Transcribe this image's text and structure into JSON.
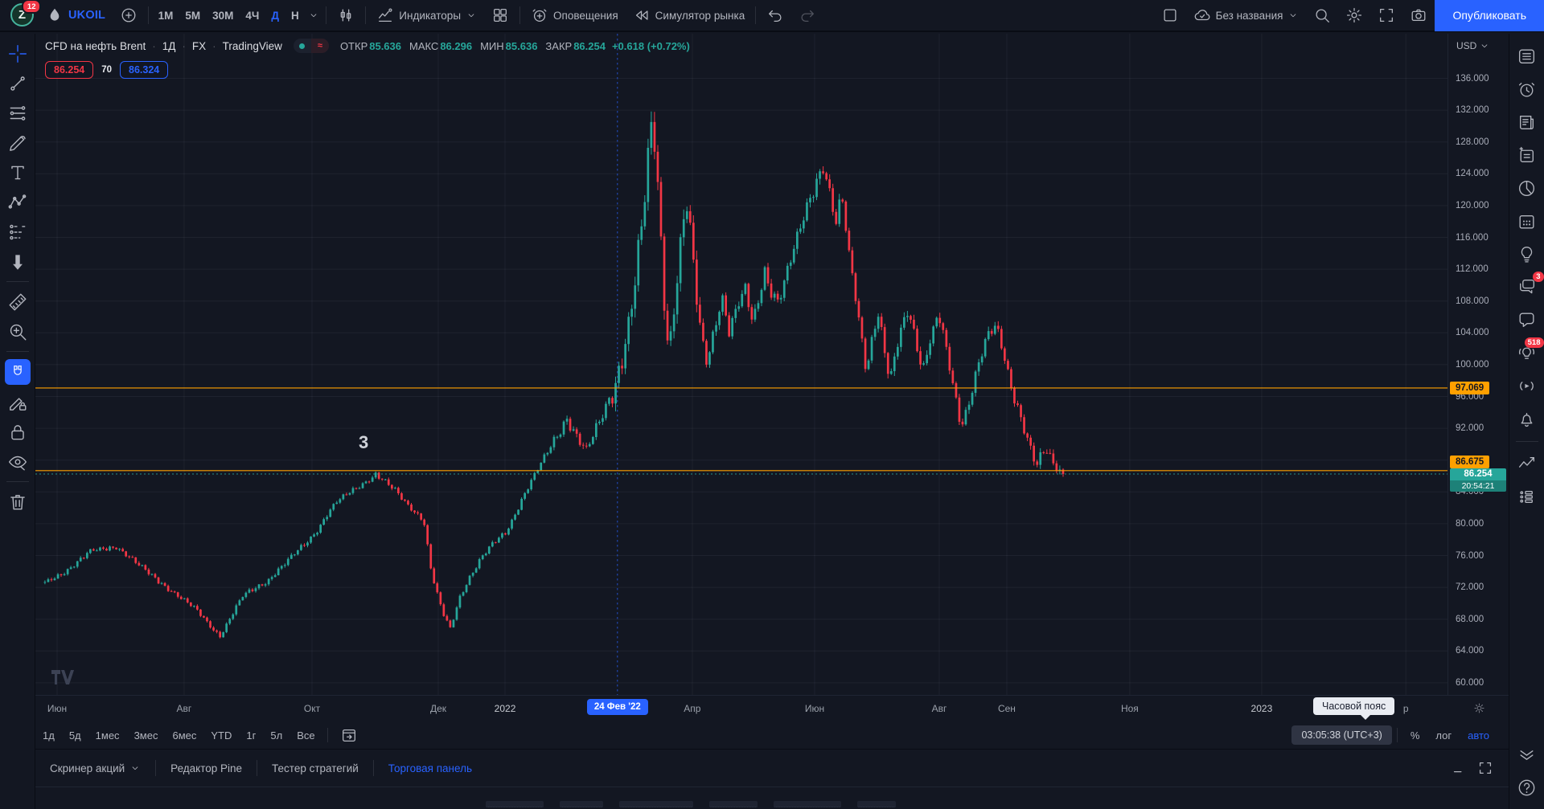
{
  "colors": {
    "accent": "#2962ff",
    "up": "#26a69a",
    "down": "#f23645",
    "orange": "#ffa000",
    "background": "#131722",
    "text": "#d1d4dc",
    "text_dim": "#787b86",
    "grid": "rgba(240,243,250,0.055)"
  },
  "topbar": {
    "avatar_letter": "Z",
    "avatar_badge": "12",
    "symbol": "UKOIL",
    "timeframes": [
      {
        "label": "1M"
      },
      {
        "label": "5M"
      },
      {
        "label": "30M"
      },
      {
        "label": "4Ч"
      },
      {
        "label": "Д",
        "active": true
      },
      {
        "label": "Н"
      }
    ],
    "indicators_label": "Индикаторы",
    "alerts_label": "Оповещения",
    "simulator_label": "Симулятор рынка",
    "layout_name": "Без названия",
    "publish_label": "Опубликовать"
  },
  "legend": {
    "title": "CFD на нефть Brent",
    "timeframe": "1Д",
    "market": "FX",
    "provider": "TradingView",
    "ohlc": [
      {
        "k": "ОТКР",
        "v": "85.636"
      },
      {
        "k": "МАКС",
        "v": "86.296"
      },
      {
        "k": "МИН",
        "v": "85.636"
      },
      {
        "k": "ЗАКР",
        "v": "86.254"
      }
    ],
    "change": "+0.618 (+0.72%)",
    "sell_price": "86.254",
    "spread": "70",
    "buy_price": "86.324"
  },
  "annotation": {
    "text": "3"
  },
  "left_toolbar": {
    "items": [
      {
        "icon": "crosshair",
        "name": "crosshair-tool",
        "accent": true
      },
      {
        "icon": "trend-line",
        "name": "trend-line-tool"
      },
      {
        "icon": "fib-lines",
        "name": "fib-retracement-tool"
      },
      {
        "icon": "brush",
        "name": "brush-tool"
      },
      {
        "icon": "text-tool",
        "name": "text-tool"
      },
      {
        "icon": "xabcd",
        "name": "pattern-tool"
      },
      {
        "icon": "forecast",
        "name": "prediction-measure-tool"
      },
      {
        "icon": "arrow-down-bold",
        "name": "arrow-marker-tool"
      },
      {
        "divider": true
      },
      {
        "icon": "ruler",
        "name": "measure-tool"
      },
      {
        "icon": "zoom-in",
        "name": "zoom-in-tool"
      },
      {
        "divider": true
      },
      {
        "icon": "magnet",
        "name": "magnet-mode",
        "active": true
      },
      {
        "icon": "pencil-lock",
        "name": "stay-in-drawing-mode"
      },
      {
        "icon": "lock",
        "name": "lock-all-drawings"
      },
      {
        "icon": "eye-off",
        "name": "hide-all-drawings"
      },
      {
        "divider": true
      },
      {
        "icon": "trash",
        "name": "remove-all-drawings"
      }
    ]
  },
  "right_sidebar": {
    "items": [
      {
        "icon": "watchlist",
        "name": "watchlist-panel"
      },
      {
        "icon": "alarm-clock",
        "name": "alerts-panel"
      },
      {
        "icon": "news",
        "name": "news-panel"
      },
      {
        "icon": "notes-sparkle",
        "name": "notes-panel"
      },
      {
        "icon": "pie",
        "name": "hotlists-panel"
      },
      {
        "icon": "calendar-grid",
        "name": "calendar-panel"
      },
      {
        "icon": "ideas-bulb",
        "name": "ideas-panel"
      },
      {
        "icon": "chats",
        "name": "private-chats-panel",
        "badge": "3"
      },
      {
        "icon": "chat-bubble",
        "name": "public-chat-panel"
      },
      {
        "icon": "minds-bulb",
        "name": "minds-panel",
        "badge": "518"
      },
      {
        "icon": "streams",
        "name": "streams-panel"
      },
      {
        "icon": "notifications-bell",
        "name": "notifications-panel"
      },
      {
        "divider": true
      },
      {
        "icon": "zigzag",
        "name": "object-tree-panel"
      },
      {
        "icon": "dom",
        "name": "dom-panel"
      }
    ],
    "bottom_items": [
      {
        "icon": "collapse-chevrons",
        "name": "collapse-sidebar-button"
      },
      {
        "icon": "help-circle",
        "name": "help-button"
      }
    ]
  },
  "price_scale": {
    "currency": "USD",
    "ticks": [
      136,
      132,
      128,
      124,
      120,
      116,
      112,
      108,
      104,
      100,
      96,
      92,
      88,
      84,
      80,
      76,
      72,
      68,
      64,
      60
    ],
    "level1_label": "97.069",
    "level2_label": "86.675",
    "last_price_label": "86.254",
    "countdown": "20:54:21"
  },
  "time_axis": {
    "labels": [
      {
        "t": "Июн",
        "f": 0.0154
      },
      {
        "t": "Авг",
        "f": 0.1053
      },
      {
        "t": "Окт",
        "f": 0.1959
      },
      {
        "t": "Дек",
        "f": 0.2853
      },
      {
        "t": "2022",
        "f": 0.3326,
        "year": true
      },
      {
        "t": "Апр",
        "f": 0.4652
      },
      {
        "t": "Июн",
        "f": 0.5518
      },
      {
        "t": "Авг",
        "f": 0.6401
      },
      {
        "t": "Сен",
        "f": 0.6879
      },
      {
        "t": "Ноя",
        "f": 0.775
      },
      {
        "t": "2023",
        "f": 0.8684,
        "year": true
      },
      {
        "t": "р",
        "f": 0.9705
      }
    ],
    "selected": {
      "t": "24 Фев '22",
      "f": 0.4122
    },
    "tooltip": "Часовой пояс"
  },
  "range_row": {
    "items": [
      "1д",
      "5д",
      "1мес",
      "3мес",
      "6мес",
      "YTD",
      "1г",
      "5л",
      "Все"
    ],
    "timezone": "03:05:38 (UTC+3)",
    "percent": "%",
    "log": "лог",
    "auto": "авто"
  },
  "tabs_row": {
    "tabs": [
      {
        "label": "Скринер акций",
        "chevron": true
      },
      {
        "label": "Редактор Pine"
      },
      {
        "label": "Тестер стратегий"
      },
      {
        "label": "Торговая панель",
        "active": true
      }
    ]
  },
  "chart_data": {
    "type": "candlestick",
    "title": "CFD на нефть Brent, 1Д, FX",
    "symbol": "UKOIL",
    "interval": "1Д",
    "price_axis": {
      "min": 58,
      "max": 138,
      "tick_step": 4,
      "ticks": [
        136,
        132,
        128,
        124,
        120,
        116,
        112,
        108,
        104,
        100,
        96,
        92,
        88,
        84,
        80,
        76,
        72,
        68,
        64,
        60
      ]
    },
    "candle_region": [
      0.006,
      0.727
    ],
    "num_candles": 315,
    "price_path_anchors": [
      [
        0.0,
        72.5
      ],
      [
        0.02,
        74.0
      ],
      [
        0.045,
        76.5
      ],
      [
        0.07,
        77.2
      ],
      [
        0.095,
        74.5
      ],
      [
        0.12,
        72.0
      ],
      [
        0.15,
        69.0
      ],
      [
        0.172,
        65.9
      ],
      [
        0.195,
        71.0
      ],
      [
        0.22,
        73.0
      ],
      [
        0.24,
        75.5
      ],
      [
        0.263,
        78.5
      ],
      [
        0.285,
        82.5
      ],
      [
        0.305,
        84.5
      ],
      [
        0.325,
        86.2
      ],
      [
        0.345,
        84.0
      ],
      [
        0.36,
        82.0
      ],
      [
        0.372,
        80.5
      ],
      [
        0.38,
        73.5
      ],
      [
        0.39,
        69.0
      ],
      [
        0.398,
        66.8
      ],
      [
        0.408,
        71.0
      ],
      [
        0.418,
        73.5
      ],
      [
        0.428,
        75.5
      ],
      [
        0.44,
        77.5
      ],
      [
        0.453,
        79.0
      ],
      [
        0.47,
        83.5
      ],
      [
        0.487,
        87.5
      ],
      [
        0.5,
        90.5
      ],
      [
        0.512,
        93.5
      ],
      [
        0.522,
        91.0
      ],
      [
        0.532,
        89.0
      ],
      [
        0.545,
        93.0
      ],
      [
        0.556,
        96.5
      ],
      [
        0.564,
        99.5
      ],
      [
        0.572,
        103.5
      ],
      [
        0.58,
        110.5
      ],
      [
        0.588,
        119.0
      ],
      [
        0.593,
        127.0
      ],
      [
        0.597,
        132.0
      ],
      [
        0.603,
        121.0
      ],
      [
        0.608,
        109.0
      ],
      [
        0.613,
        101.5
      ],
      [
        0.618,
        107.0
      ],
      [
        0.624,
        114.0
      ],
      [
        0.63,
        120.5
      ],
      [
        0.637,
        112.0
      ],
      [
        0.643,
        105.0
      ],
      [
        0.65,
        100.5
      ],
      [
        0.657,
        104.5
      ],
      [
        0.665,
        108.5
      ],
      [
        0.672,
        104.0
      ],
      [
        0.68,
        107.0
      ],
      [
        0.688,
        109.5
      ],
      [
        0.695,
        105.5
      ],
      [
        0.7,
        108.0
      ],
      [
        0.707,
        112.0
      ],
      [
        0.713,
        109.5
      ],
      [
        0.72,
        107.5
      ],
      [
        0.727,
        110.5
      ],
      [
        0.735,
        114.0
      ],
      [
        0.742,
        117.5
      ],
      [
        0.75,
        121.0
      ],
      [
        0.757,
        123.0
      ],
      [
        0.764,
        125.0
      ],
      [
        0.771,
        121.0
      ],
      [
        0.777,
        117.5
      ],
      [
        0.783,
        121.0
      ],
      [
        0.789,
        114.5
      ],
      [
        0.795,
        110.0
      ],
      [
        0.801,
        104.5
      ],
      [
        0.807,
        99.5
      ],
      [
        0.812,
        103.0
      ],
      [
        0.818,
        106.5
      ],
      [
        0.824,
        102.0
      ],
      [
        0.83,
        97.5
      ],
      [
        0.836,
        102.0
      ],
      [
        0.842,
        105.0
      ],
      [
        0.848,
        107.5
      ],
      [
        0.855,
        103.5
      ],
      [
        0.862,
        99.0
      ],
      [
        0.87,
        103.0
      ],
      [
        0.878,
        106.0
      ],
      [
        0.885,
        102.0
      ],
      [
        0.893,
        97.0
      ],
      [
        0.9,
        92.5
      ],
      [
        0.908,
        95.5
      ],
      [
        0.916,
        99.5
      ],
      [
        0.925,
        103.0
      ],
      [
        0.934,
        105.0
      ],
      [
        0.942,
        101.5
      ],
      [
        0.95,
        97.0
      ],
      [
        0.958,
        93.5
      ],
      [
        0.966,
        90.0
      ],
      [
        0.974,
        87.0
      ],
      [
        0.982,
        89.5
      ],
      [
        0.99,
        88.0
      ],
      [
        1.0,
        86.25
      ]
    ],
    "levels": [
      {
        "price": 97.069,
        "color": "#ffa000",
        "style": "solid"
      },
      {
        "price": 86.675,
        "color": "#ffa000",
        "style": "solid"
      }
    ],
    "last_price": 86.254,
    "event_line": {
      "label": "24 Фев '22",
      "f": 0.4122,
      "color": "#2962ff",
      "style": "dashed"
    }
  }
}
